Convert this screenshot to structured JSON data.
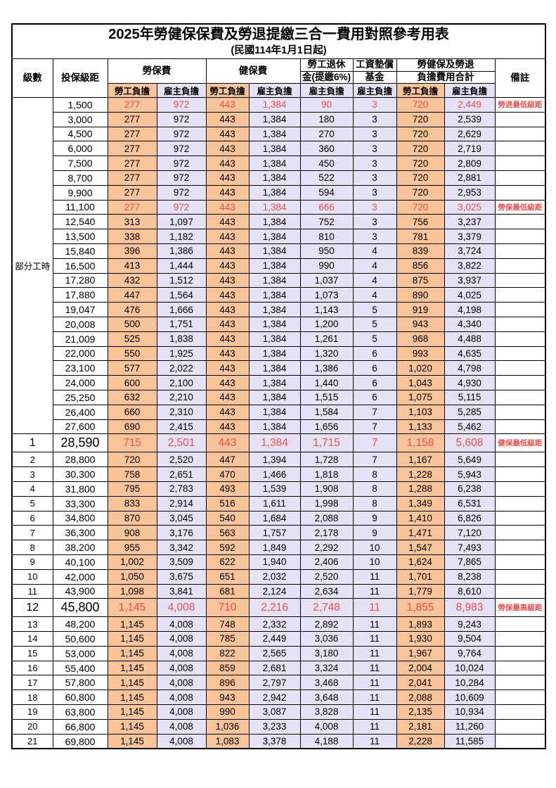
{
  "title": "2025年勞健保保費及勞退提繳三合一費用對照參考用表",
  "subtitle": "(民國114年1月1日起)",
  "colors": {
    "employee_bg": "#F9C499",
    "employer_bg": "#E4E2F4",
    "highlight_red": "#F24E4B"
  },
  "header": {
    "level": "級數",
    "bracket": "投保級距",
    "labor_ins": "勞保費",
    "health_ins": "健保費",
    "pension_line1": "勞工退休",
    "pension_line2": "金(提繳6%)",
    "wage_fund_line1": "工資墊償",
    "wage_fund_line2": "基金",
    "total_line1": "勞健保及勞退",
    "total_line2": "負擔費用合計",
    "note": "備註",
    "employee": "勞工負擔",
    "employer": "雇主負擔"
  },
  "part_time": {
    "label": "部分工時",
    "row_count": 23
  },
  "rows": [
    {
      "level": "",
      "bracket": "1,500",
      "v": [
        "277",
        "972",
        "443",
        "1,384",
        "90",
        "3",
        "720",
        "2,449"
      ],
      "note": "勞退最低級距",
      "red": true
    },
    {
      "level": "",
      "bracket": "3,000",
      "v": [
        "277",
        "972",
        "443",
        "1,384",
        "180",
        "3",
        "720",
        "2,539"
      ]
    },
    {
      "level": "",
      "bracket": "4,500",
      "v": [
        "277",
        "972",
        "443",
        "1,384",
        "270",
        "3",
        "720",
        "2,629"
      ]
    },
    {
      "level": "",
      "bracket": "6,000",
      "v": [
        "277",
        "972",
        "443",
        "1,384",
        "360",
        "3",
        "720",
        "2,719"
      ]
    },
    {
      "level": "",
      "bracket": "7,500",
      "v": [
        "277",
        "972",
        "443",
        "1,384",
        "450",
        "3",
        "720",
        "2,809"
      ]
    },
    {
      "level": "",
      "bracket": "8,700",
      "v": [
        "277",
        "972",
        "443",
        "1,384",
        "522",
        "3",
        "720",
        "2,881"
      ]
    },
    {
      "level": "",
      "bracket": "9,900",
      "v": [
        "277",
        "972",
        "443",
        "1,384",
        "594",
        "3",
        "720",
        "2,953"
      ]
    },
    {
      "level": "",
      "bracket": "11,100",
      "v": [
        "277",
        "972",
        "443",
        "1,384",
        "666",
        "3",
        "720",
        "3,025"
      ],
      "note": "勞保最低級距",
      "red": true
    },
    {
      "level": "",
      "bracket": "12,540",
      "v": [
        "313",
        "1,097",
        "443",
        "1,384",
        "752",
        "3",
        "756",
        "3,237"
      ]
    },
    {
      "level": "",
      "bracket": "13,500",
      "v": [
        "338",
        "1,182",
        "443",
        "1,384",
        "810",
        "3",
        "781",
        "3,379"
      ]
    },
    {
      "level": "",
      "bracket": "15,840",
      "v": [
        "396",
        "1,386",
        "443",
        "1,384",
        "950",
        "4",
        "839",
        "3,724"
      ]
    },
    {
      "level": "",
      "bracket": "16,500",
      "v": [
        "413",
        "1,444",
        "443",
        "1,384",
        "990",
        "4",
        "856",
        "3,822"
      ]
    },
    {
      "level": "",
      "bracket": "17,280",
      "v": [
        "432",
        "1,512",
        "443",
        "1,384",
        "1,037",
        "4",
        "875",
        "3,937"
      ]
    },
    {
      "level": "",
      "bracket": "17,880",
      "v": [
        "447",
        "1,564",
        "443",
        "1,384",
        "1,073",
        "4",
        "890",
        "4,025"
      ]
    },
    {
      "level": "",
      "bracket": "19,047",
      "v": [
        "476",
        "1,666",
        "443",
        "1,384",
        "1,143",
        "5",
        "919",
        "4,198"
      ]
    },
    {
      "level": "",
      "bracket": "20,008",
      "v": [
        "500",
        "1,751",
        "443",
        "1,384",
        "1,200",
        "5",
        "943",
        "4,340"
      ]
    },
    {
      "level": "",
      "bracket": "21,009",
      "v": [
        "525",
        "1,838",
        "443",
        "1,384",
        "1,261",
        "5",
        "968",
        "4,488"
      ]
    },
    {
      "level": "",
      "bracket": "22,000",
      "v": [
        "550",
        "1,925",
        "443",
        "1,384",
        "1,320",
        "6",
        "993",
        "4,635"
      ]
    },
    {
      "level": "",
      "bracket": "23,100",
      "v": [
        "577",
        "2,022",
        "443",
        "1,384",
        "1,386",
        "6",
        "1,020",
        "4,798"
      ]
    },
    {
      "level": "",
      "bracket": "24,000",
      "v": [
        "600",
        "2,100",
        "443",
        "1,384",
        "1,440",
        "6",
        "1,043",
        "4,930"
      ]
    },
    {
      "level": "",
      "bracket": "25,250",
      "v": [
        "632",
        "2,210",
        "443",
        "1,384",
        "1,515",
        "6",
        "1,075",
        "5,115"
      ]
    },
    {
      "level": "",
      "bracket": "26,400",
      "v": [
        "660",
        "2,310",
        "443",
        "1,384",
        "1,584",
        "7",
        "1,103",
        "5,285"
      ]
    },
    {
      "level": "",
      "bracket": "27,600",
      "v": [
        "690",
        "2,415",
        "443",
        "1,384",
        "1,656",
        "7",
        "1,133",
        "5,462"
      ]
    },
    {
      "level": "1",
      "bracket": "28,590",
      "v": [
        "715",
        "2,501",
        "443",
        "1,384",
        "1,715",
        "7",
        "1,158",
        "5,608"
      ],
      "note": "健保最低級距",
      "red": true,
      "big": true
    },
    {
      "level": "2",
      "bracket": "28,800",
      "v": [
        "720",
        "2,520",
        "447",
        "1,394",
        "1,728",
        "7",
        "1,167",
        "5,649"
      ]
    },
    {
      "level": "3",
      "bracket": "30,300",
      "v": [
        "758",
        "2,651",
        "470",
        "1,466",
        "1,818",
        "8",
        "1,228",
        "5,943"
      ]
    },
    {
      "level": "4",
      "bracket": "31,800",
      "v": [
        "795",
        "2,783",
        "493",
        "1,539",
        "1,908",
        "8",
        "1,288",
        "6,238"
      ]
    },
    {
      "level": "5",
      "bracket": "33,300",
      "v": [
        "833",
        "2,914",
        "516",
        "1,611",
        "1,998",
        "8",
        "1,349",
        "6,531"
      ]
    },
    {
      "level": "6",
      "bracket": "34,800",
      "v": [
        "870",
        "3,045",
        "540",
        "1,684",
        "2,088",
        "9",
        "1,410",
        "6,826"
      ]
    },
    {
      "level": "7",
      "bracket": "36,300",
      "v": [
        "908",
        "3,176",
        "563",
        "1,757",
        "2,178",
        "9",
        "1,471",
        "7,120"
      ]
    },
    {
      "level": "8",
      "bracket": "38,200",
      "v": [
        "955",
        "3,342",
        "592",
        "1,849",
        "2,292",
        "10",
        "1,547",
        "7,493"
      ]
    },
    {
      "level": "9",
      "bracket": "40,100",
      "v": [
        "1,002",
        "3,509",
        "622",
        "1,940",
        "2,406",
        "10",
        "1,624",
        "7,865"
      ]
    },
    {
      "level": "10",
      "bracket": "42,000",
      "v": [
        "1,050",
        "3,675",
        "651",
        "2,032",
        "2,520",
        "11",
        "1,701",
        "8,238"
      ]
    },
    {
      "level": "11",
      "bracket": "43,900",
      "v": [
        "1,098",
        "3,841",
        "681",
        "2,124",
        "2,634",
        "11",
        "1,779",
        "8,610"
      ]
    },
    {
      "level": "12",
      "bracket": "45,800",
      "v": [
        "1,145",
        "4,008",
        "710",
        "2,216",
        "2,748",
        "11",
        "1,855",
        "8,983"
      ],
      "note": "勞保最高級距",
      "red": true,
      "big": true
    },
    {
      "level": "13",
      "bracket": "48,200",
      "v": [
        "1,145",
        "4,008",
        "748",
        "2,332",
        "2,892",
        "11",
        "1,893",
        "9,243"
      ]
    },
    {
      "level": "14",
      "bracket": "50,600",
      "v": [
        "1,145",
        "4,008",
        "785",
        "2,449",
        "3,036",
        "11",
        "1,930",
        "9,504"
      ]
    },
    {
      "level": "15",
      "bracket": "53,000",
      "v": [
        "1,145",
        "4,008",
        "822",
        "2,565",
        "3,180",
        "11",
        "1,967",
        "9,764"
      ]
    },
    {
      "level": "16",
      "bracket": "55,400",
      "v": [
        "1,145",
        "4,008",
        "859",
        "2,681",
        "3,324",
        "11",
        "2,004",
        "10,024"
      ]
    },
    {
      "level": "17",
      "bracket": "57,800",
      "v": [
        "1,145",
        "4,008",
        "896",
        "2,797",
        "3,468",
        "11",
        "2,041",
        "10,284"
      ]
    },
    {
      "level": "18",
      "bracket": "60,800",
      "v": [
        "1,145",
        "4,008",
        "943",
        "2,942",
        "3,648",
        "11",
        "2,088",
        "10,609"
      ]
    },
    {
      "level": "19",
      "bracket": "63,800",
      "v": [
        "1,145",
        "4,008",
        "990",
        "3,087",
        "3,828",
        "11",
        "2,135",
        "10,934"
      ]
    },
    {
      "level": "20",
      "bracket": "66,800",
      "v": [
        "1,145",
        "4,008",
        "1,036",
        "3,233",
        "4,008",
        "11",
        "2,181",
        "11,260"
      ]
    },
    {
      "level": "21",
      "bracket": "69,800",
      "v": [
        "1,145",
        "4,008",
        "1,083",
        "3,378",
        "4,188",
        "11",
        "2,228",
        "11,585"
      ]
    }
  ]
}
